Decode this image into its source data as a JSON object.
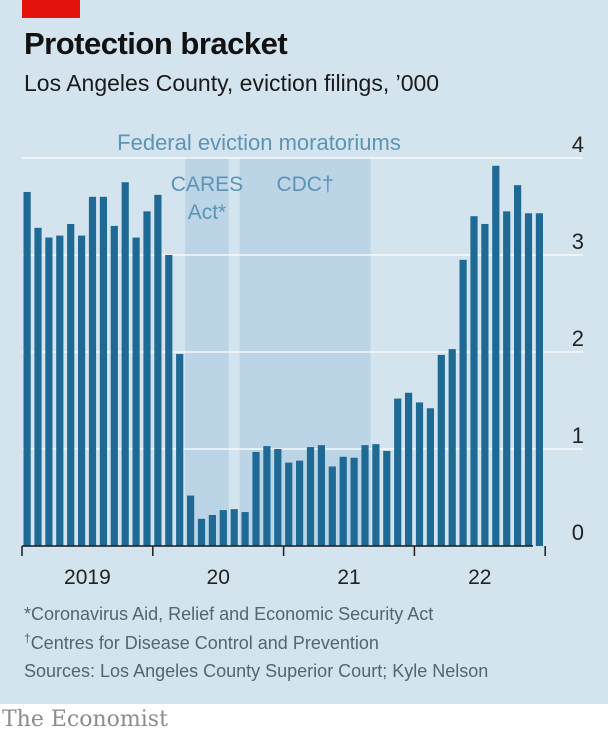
{
  "header": {
    "title": "Protection bracket",
    "subtitle": "Los Angeles County, eviction filings, ’000"
  },
  "footnotes": {
    "cares_mark": "*",
    "cares_text": "Coronavirus Aid, Relief and Economic Security Act",
    "cdc_mark": "†",
    "cdc_text": "Centres for Disease Control and Prevention",
    "sources": "Sources: Los Angeles County Superior Court; Kyle Nelson"
  },
  "brand": "The Economist",
  "colors": {
    "panel": "#d3e4ef",
    "bar": "#1f6a94",
    "shade": "#bcd5e6",
    "shade_label": "#5b94b5",
    "grid": "#ffffff",
    "accent_red": "#e3120b"
  },
  "chart_data": {
    "type": "bar",
    "title": "Protection bracket",
    "subtitle": "Los Angeles County, eviction filings, ’000",
    "x_start": "2019-01",
    "x_period": "month",
    "x_tick_labels": [
      "2019",
      "20",
      "21",
      "22"
    ],
    "values": [
      3.65,
      3.28,
      3.18,
      3.2,
      3.32,
      3.2,
      3.6,
      3.6,
      3.3,
      3.75,
      3.18,
      3.45,
      3.62,
      3.0,
      1.98,
      0.52,
      0.28,
      0.32,
      0.37,
      0.38,
      0.35,
      0.97,
      1.03,
      1.0,
      0.86,
      0.88,
      1.02,
      1.04,
      0.82,
      0.92,
      0.91,
      1.04,
      1.05,
      0.98,
      1.52,
      1.58,
      1.48,
      1.42,
      1.97,
      2.03,
      2.95,
      3.4,
      3.32,
      3.92,
      3.45,
      3.72,
      3.43,
      3.43
    ],
    "ylim": [
      0,
      4
    ],
    "yticks": [
      0,
      1,
      2,
      3,
      4
    ],
    "ytick_labels": [
      "0",
      "1",
      "2",
      "3",
      "4"
    ],
    "y_axis_side": "right",
    "grid": true,
    "shaded_periods": {
      "group_label": "Federal eviction moratoriums",
      "periods": [
        {
          "label_line1": "CARES",
          "label_line2": "Act*",
          "start": "2020-04",
          "end": "2020-07"
        },
        {
          "label_line1": "CDC†",
          "label_line2": "",
          "start": "2020-09",
          "end": "2021-08"
        }
      ]
    }
  }
}
